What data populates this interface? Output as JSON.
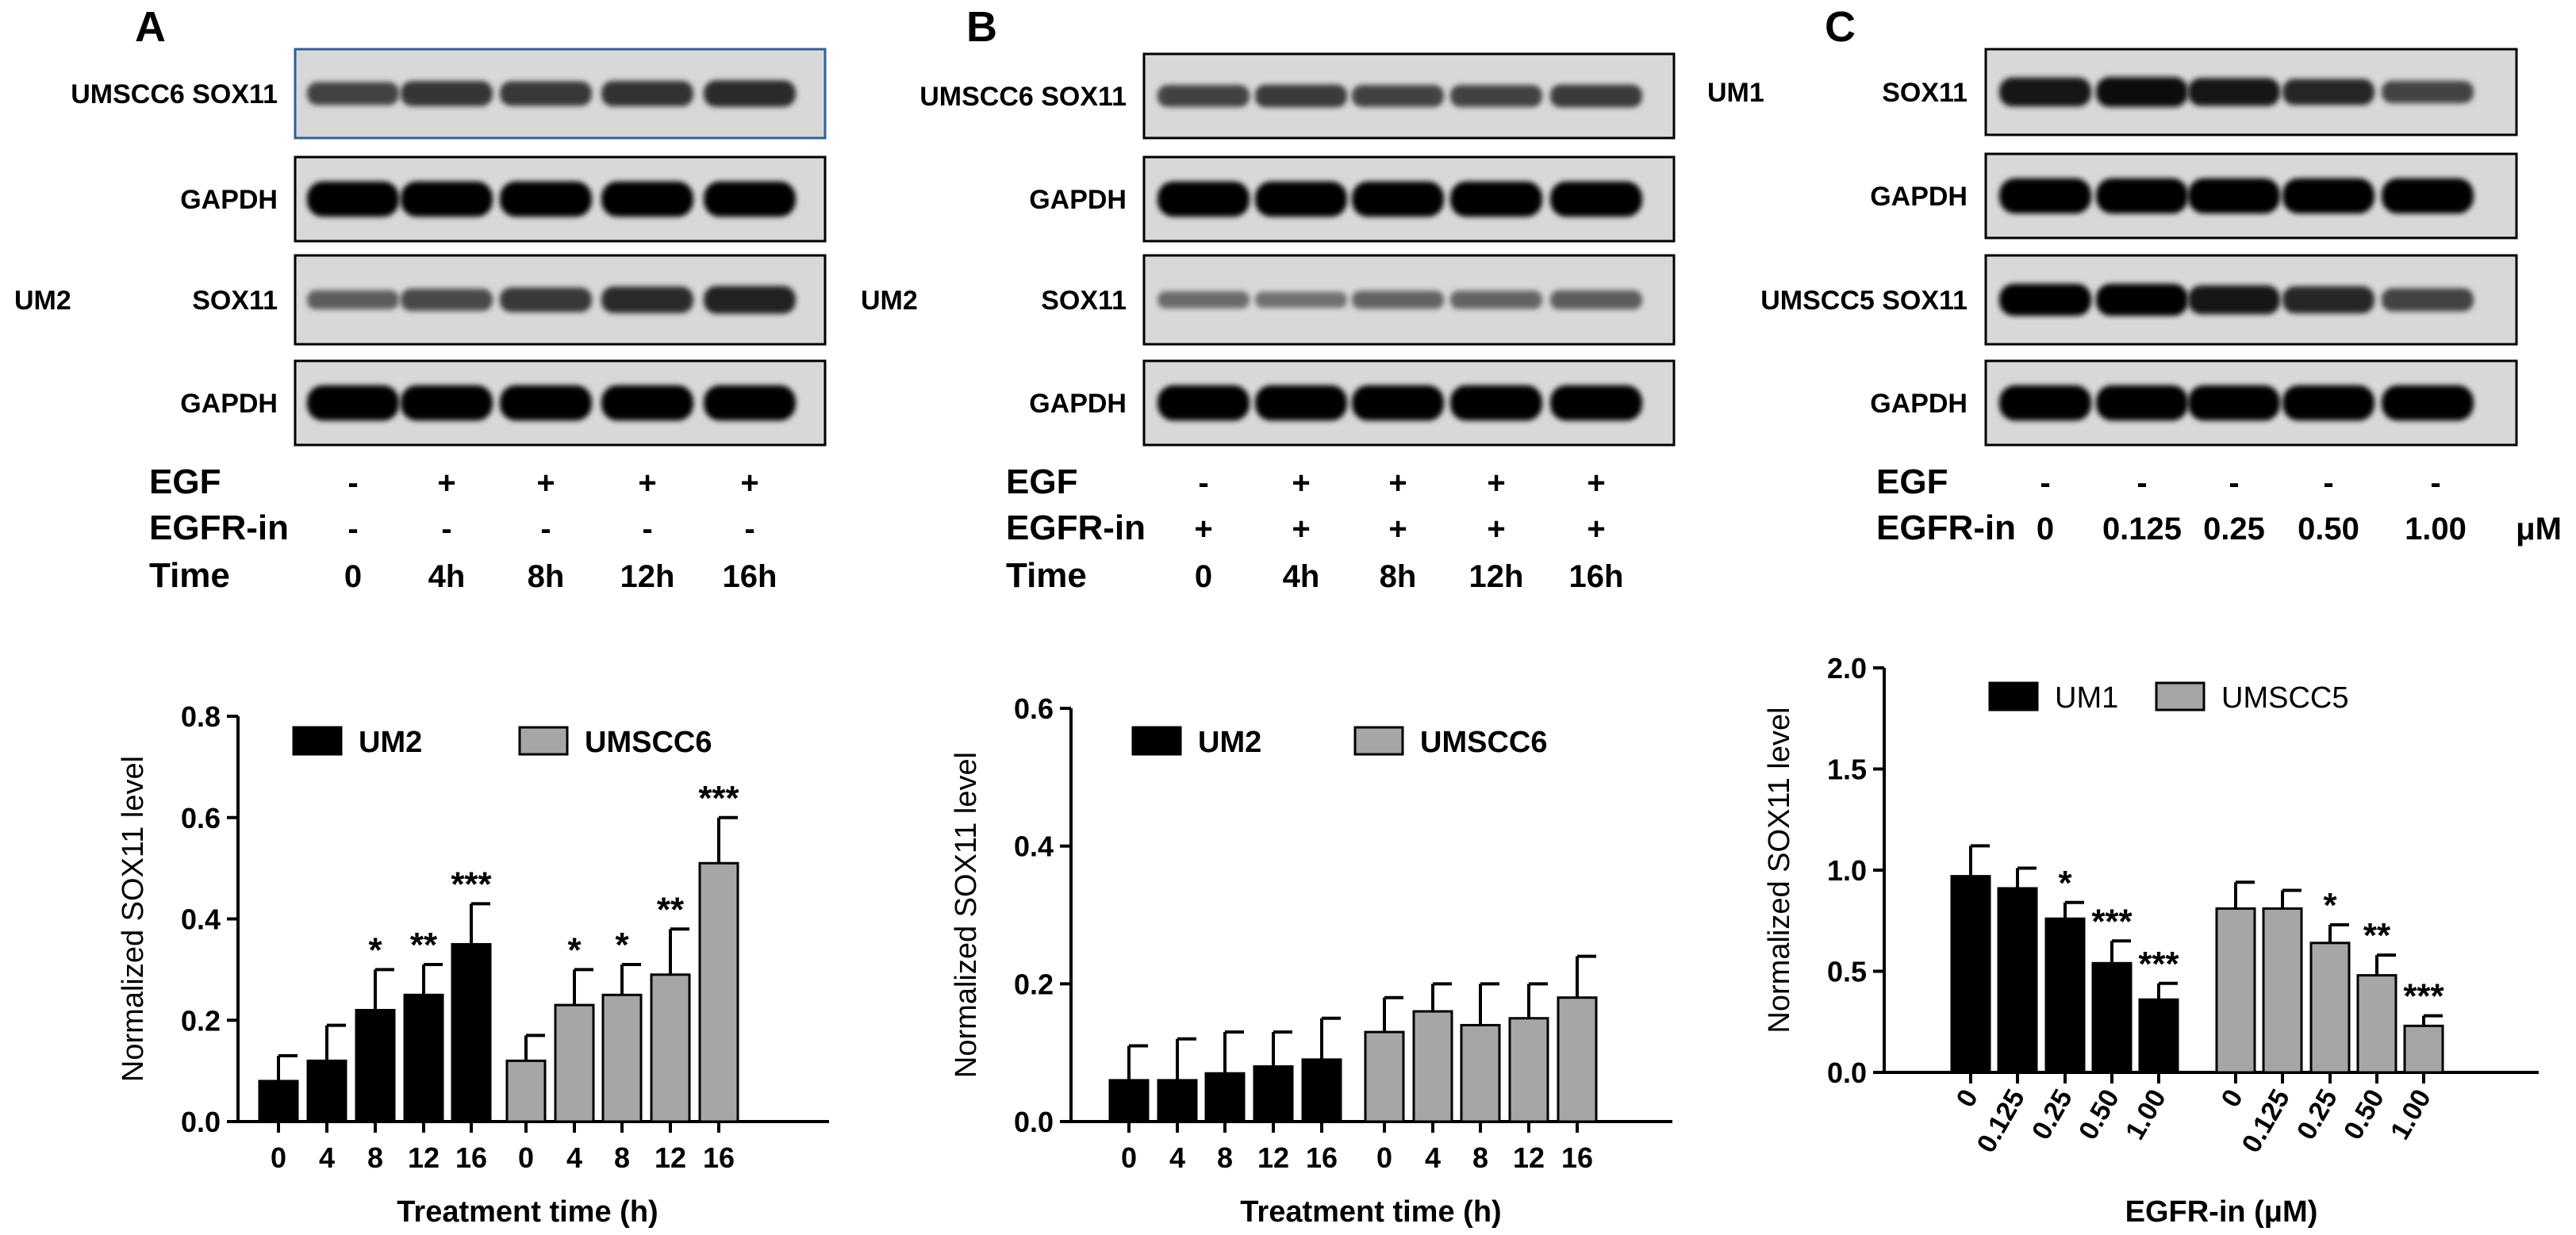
{
  "panels": [
    {
      "letter": "A",
      "blot_rows": [
        {
          "cell": "UMSCC6",
          "protein": "SOX11",
          "band_intensity": [
            0.55,
            0.65,
            0.62,
            0.66,
            0.72
          ],
          "highlight": true
        },
        {
          "cell": "",
          "protein": "GAPDH",
          "band_intensity": [
            1.0,
            1.0,
            1.0,
            1.0,
            1.0
          ]
        },
        {
          "cell": "UM2",
          "protein": "SOX11",
          "band_intensity": [
            0.35,
            0.5,
            0.62,
            0.72,
            0.78
          ]
        },
        {
          "cell": "",
          "protein": "GAPDH",
          "band_intensity": [
            1.0,
            1.0,
            1.0,
            1.0,
            1.0
          ]
        }
      ],
      "conditions": [
        {
          "label": "EGF",
          "values": [
            "-",
            "+",
            "+",
            "+",
            "+"
          ]
        },
        {
          "label": "EGFR-in",
          "values": [
            "-",
            "-",
            "-",
            "-",
            "-"
          ]
        },
        {
          "label": "Time",
          "values": [
            "0",
            "4h",
            "8h",
            "12h",
            "16h"
          ]
        }
      ]
    },
    {
      "letter": "B",
      "blot_rows": [
        {
          "cell": "UMSCC6",
          "protein": "SOX11",
          "band_intensity": [
            0.55,
            0.6,
            0.55,
            0.55,
            0.6
          ]
        },
        {
          "cell": "",
          "protein": "GAPDH",
          "band_intensity": [
            1.0,
            1.0,
            1.0,
            1.0,
            1.0
          ]
        },
        {
          "cell": "UM2",
          "protein": "SOX11",
          "band_intensity": [
            0.25,
            0.2,
            0.3,
            0.3,
            0.35
          ]
        },
        {
          "cell": "",
          "protein": "GAPDH",
          "band_intensity": [
            1.0,
            1.0,
            1.0,
            1.0,
            1.0
          ]
        }
      ],
      "conditions": [
        {
          "label": "EGF",
          "values": [
            "-",
            "+",
            "+",
            "+",
            "+"
          ]
        },
        {
          "label": "EGFR-in",
          "values": [
            "+",
            "+",
            "+",
            "+",
            "+"
          ]
        },
        {
          "label": "Time",
          "values": [
            "0",
            "4h",
            "8h",
            "12h",
            "16h"
          ]
        }
      ]
    },
    {
      "letter": "C",
      "blot_rows": [
        {
          "cell": "UM1",
          "protein": "SOX11",
          "band_intensity": [
            0.9,
            0.95,
            0.85,
            0.75,
            0.55
          ]
        },
        {
          "cell": "",
          "protein": "GAPDH",
          "band_intensity": [
            1.0,
            1.0,
            1.0,
            1.0,
            1.0
          ]
        },
        {
          "cell": "UMSCC5",
          "protein": "SOX11",
          "band_intensity": [
            1.0,
            1.0,
            0.85,
            0.75,
            0.55
          ]
        },
        {
          "cell": "",
          "protein": "GAPDH",
          "band_intensity": [
            1.0,
            1.0,
            1.0,
            1.0,
            1.0
          ]
        }
      ],
      "conditions": [
        {
          "label": "EGF",
          "values": [
            "-",
            "-",
            "-",
            "-",
            "-"
          ]
        },
        {
          "label": "EGFR-in",
          "values": [
            "0",
            "0.125",
            "0.25",
            "0.50",
            "1.00"
          ],
          "unit": "μM"
        }
      ]
    }
  ],
  "chart_data": [
    {
      "type": "bar",
      "ylabel": "Normalized SOX11 level",
      "xlabel": "Treatment time (h)",
      "ylim": [
        0,
        0.8
      ],
      "yticks": [
        "0.0",
        "0.2",
        "0.4",
        "0.6",
        "0.8"
      ],
      "legend_position": "top-left",
      "groups": [
        {
          "name": "UM2",
          "color": "#000000",
          "categories": [
            "0",
            "4",
            "8",
            "12",
            "16"
          ],
          "values": [
            0.08,
            0.12,
            0.22,
            0.25,
            0.35
          ],
          "errors": [
            0.05,
            0.07,
            0.08,
            0.06,
            0.08
          ],
          "significance": [
            "",
            "",
            "*",
            "**",
            "***"
          ]
        },
        {
          "name": "UMSCC6",
          "color": "#a6a6a6",
          "categories": [
            "0",
            "4",
            "8",
            "12",
            "16"
          ],
          "values": [
            0.12,
            0.23,
            0.25,
            0.29,
            0.51
          ],
          "errors": [
            0.05,
            0.07,
            0.06,
            0.09,
            0.09
          ],
          "significance": [
            "",
            "*",
            "*",
            "**",
            "***"
          ]
        }
      ]
    },
    {
      "type": "bar",
      "ylabel": "Normalized SOX11 level",
      "xlabel": "Treatment time (h)",
      "ylim": [
        0,
        0.6
      ],
      "yticks": [
        "0.0",
        "0.2",
        "0.4",
        "0.6"
      ],
      "legend_position": "top-left",
      "groups": [
        {
          "name": "UM2",
          "color": "#000000",
          "categories": [
            "0",
            "4",
            "8",
            "12",
            "16"
          ],
          "values": [
            0.06,
            0.06,
            0.07,
            0.08,
            0.09
          ],
          "errors": [
            0.05,
            0.06,
            0.06,
            0.05,
            0.06
          ],
          "significance": [
            "",
            "",
            "",
            "",
            ""
          ]
        },
        {
          "name": "UMSCC6",
          "color": "#a6a6a6",
          "categories": [
            "0",
            "4",
            "8",
            "12",
            "16"
          ],
          "values": [
            0.13,
            0.16,
            0.14,
            0.15,
            0.18
          ],
          "errors": [
            0.05,
            0.04,
            0.06,
            0.05,
            0.06
          ],
          "significance": [
            "",
            "",
            "",
            "",
            ""
          ]
        }
      ]
    },
    {
      "type": "bar",
      "ylabel": "Normalized SOX11 level",
      "xlabel": "EGFR-in (μM)",
      "ylim": [
        0,
        2.0
      ],
      "yticks": [
        "0.0",
        "0.5",
        "1.0",
        "1.5",
        "2.0"
      ],
      "legend_position": "top-left",
      "rotated_ticks": true,
      "groups": [
        {
          "name": "UM1",
          "color": "#000000",
          "categories": [
            "0",
            "0.125",
            "0.25",
            "0.50",
            "1.00"
          ],
          "values": [
            0.97,
            0.91,
            0.76,
            0.54,
            0.36
          ],
          "errors": [
            0.15,
            0.1,
            0.08,
            0.11,
            0.08
          ],
          "significance": [
            "",
            "",
            "*",
            "***",
            "***"
          ]
        },
        {
          "name": "UMSCC5",
          "color": "#a6a6a6",
          "categories": [
            "0",
            "0.125",
            "0.25",
            "0.50",
            "1.00"
          ],
          "values": [
            0.81,
            0.81,
            0.64,
            0.48,
            0.23
          ],
          "errors": [
            0.13,
            0.09,
            0.09,
            0.1,
            0.05
          ],
          "significance": [
            "",
            "",
            "*",
            "**",
            "***"
          ]
        }
      ]
    }
  ]
}
